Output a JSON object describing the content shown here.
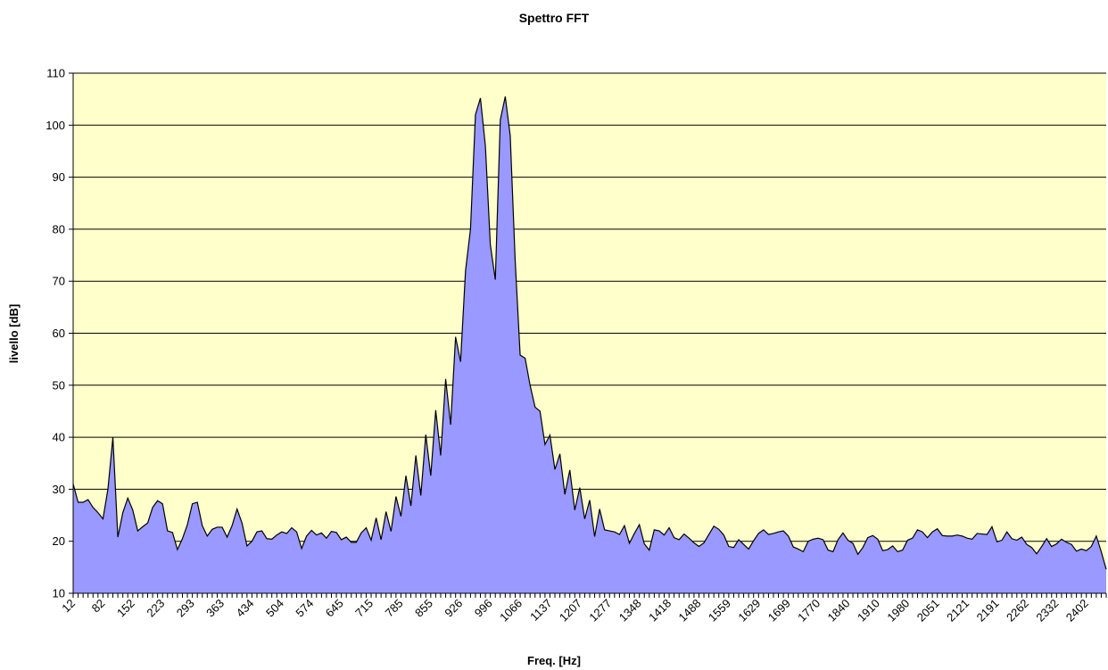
{
  "chart_data": {
    "type": "area",
    "title": "Spettro FFT",
    "xlabel": "Freq. [Hz]",
    "ylabel": "livello [dB]",
    "categories": [
      "12",
      null,
      null,
      null,
      null,
      null,
      "82",
      null,
      null,
      null,
      null,
      null,
      "152",
      null,
      null,
      null,
      null,
      null,
      "223",
      null,
      null,
      null,
      null,
      null,
      "293",
      null,
      null,
      null,
      null,
      null,
      "363",
      null,
      null,
      null,
      null,
      null,
      "434",
      null,
      null,
      null,
      null,
      null,
      "504",
      null,
      null,
      null,
      null,
      null,
      "574",
      null,
      null,
      null,
      null,
      null,
      "645",
      null,
      null,
      null,
      null,
      null,
      "715",
      null,
      null,
      null,
      null,
      null,
      "785",
      null,
      null,
      null,
      null,
      null,
      "855",
      null,
      null,
      null,
      null,
      null,
      "926",
      null,
      null,
      null,
      null,
      null,
      "996",
      null,
      null,
      null,
      null,
      null,
      "1066",
      null,
      null,
      null,
      null,
      null,
      "1137",
      null,
      null,
      null,
      null,
      null,
      "1207",
      null,
      null,
      null,
      null,
      null,
      "1277",
      null,
      null,
      null,
      null,
      null,
      "1348",
      null,
      null,
      null,
      null,
      null,
      "1418",
      null,
      null,
      null,
      null,
      null,
      "1488",
      null,
      null,
      null,
      null,
      null,
      "1559",
      null,
      null,
      null,
      null,
      null,
      "1629",
      null,
      null,
      null,
      null,
      null,
      "1699",
      null,
      null,
      null,
      null,
      null,
      "1770",
      null,
      null,
      null,
      null,
      null,
      "1840",
      null,
      null,
      null,
      null,
      null,
      "1910",
      null,
      null,
      null,
      null,
      null,
      "1980",
      null,
      null,
      null,
      null,
      null,
      "2051",
      null,
      null,
      null,
      null,
      null,
      "2121",
      null,
      null,
      null,
      null,
      null,
      "2191",
      null,
      null,
      null,
      null,
      null,
      "2262",
      null,
      null,
      null,
      null,
      null,
      "2332",
      null,
      null,
      null,
      null,
      null,
      "2402",
      null,
      null,
      null,
      null
    ],
    "values": [
      31,
      27.5,
      27.5,
      28,
      26.5,
      25.5,
      24.3,
      30,
      40,
      20.8,
      25.5,
      28.3,
      26,
      22,
      22.8,
      23.5,
      26.5,
      27.8,
      27.2,
      22,
      21.7,
      18.4,
      20.5,
      23.2,
      27.2,
      27.5,
      23,
      21,
      22.3,
      22.7,
      22.7,
      20.8,
      23,
      26.2,
      23.5,
      19.1,
      20,
      21.8,
      22,
      20.5,
      20.4,
      21.2,
      21.8,
      21.5,
      22.6,
      21.8,
      18.6,
      21,
      22.1,
      21.2,
      21.6,
      20.6,
      21.9,
      21.7,
      20.3,
      20.8,
      19.8,
      19.8,
      21.6,
      22.6,
      20.2,
      24.5,
      20.3,
      25.7,
      21.9,
      28.6,
      24.8,
      32.6,
      26.8,
      36.5,
      28.8,
      40.5,
      32.6,
      45.2,
      36.5,
      51.2,
      42.4,
      59.3,
      54.5,
      72,
      80,
      102,
      105.2,
      96,
      77,
      70.3,
      101,
      105.5,
      98,
      74,
      55.8,
      55.2,
      50,
      45.8,
      45,
      38.6,
      40.4,
      33.8,
      36.8,
      29,
      33.7,
      26,
      30.3,
      24.3,
      27.9,
      20.9,
      26.2,
      22.2,
      22,
      21.8,
      21.3,
      23,
      19.6,
      21.5,
      23.2,
      19.5,
      18.3,
      22.2,
      22,
      21.2,
      22.6,
      20.7,
      20.3,
      21.4,
      20.6,
      19.7,
      19,
      19.7,
      21.3,
      22.9,
      22.3,
      21.2,
      19,
      18.8,
      20.3,
      19.4,
      18.5,
      20.1,
      21.5,
      22.2,
      21.3,
      21.5,
      21.8,
      22,
      21,
      18.9,
      18.5,
      18,
      20,
      20.4,
      20.6,
      20.3,
      18.3,
      18,
      20.3,
      21.6,
      20.2,
      19.6,
      17.5,
      18.8,
      20.7,
      21.1,
      20.4,
      18.2,
      18.4,
      19.1,
      18,
      18.3,
      20.2,
      20.6,
      22.2,
      21.8,
      20.7,
      21.8,
      22.4,
      21.1,
      21,
      21,
      21.2,
      21,
      20.6,
      20.4,
      21.5,
      21.4,
      21.3,
      22.8,
      19.9,
      20.2,
      21.8,
      20.5,
      20.2,
      20.8,
      19.4,
      18.8,
      17.6,
      19,
      20.5,
      19,
      19.5,
      20.4,
      19.8,
      19.4,
      18.1,
      18.5,
      18.2,
      19,
      21,
      18,
      14.6
    ],
    "color": "#9999ff",
    "background": "#ffffcc",
    "ylim": [
      10,
      110
    ],
    "yticks": [
      10,
      20,
      30,
      40,
      50,
      60,
      70,
      80,
      90,
      100,
      110
    ],
    "grid": true
  }
}
